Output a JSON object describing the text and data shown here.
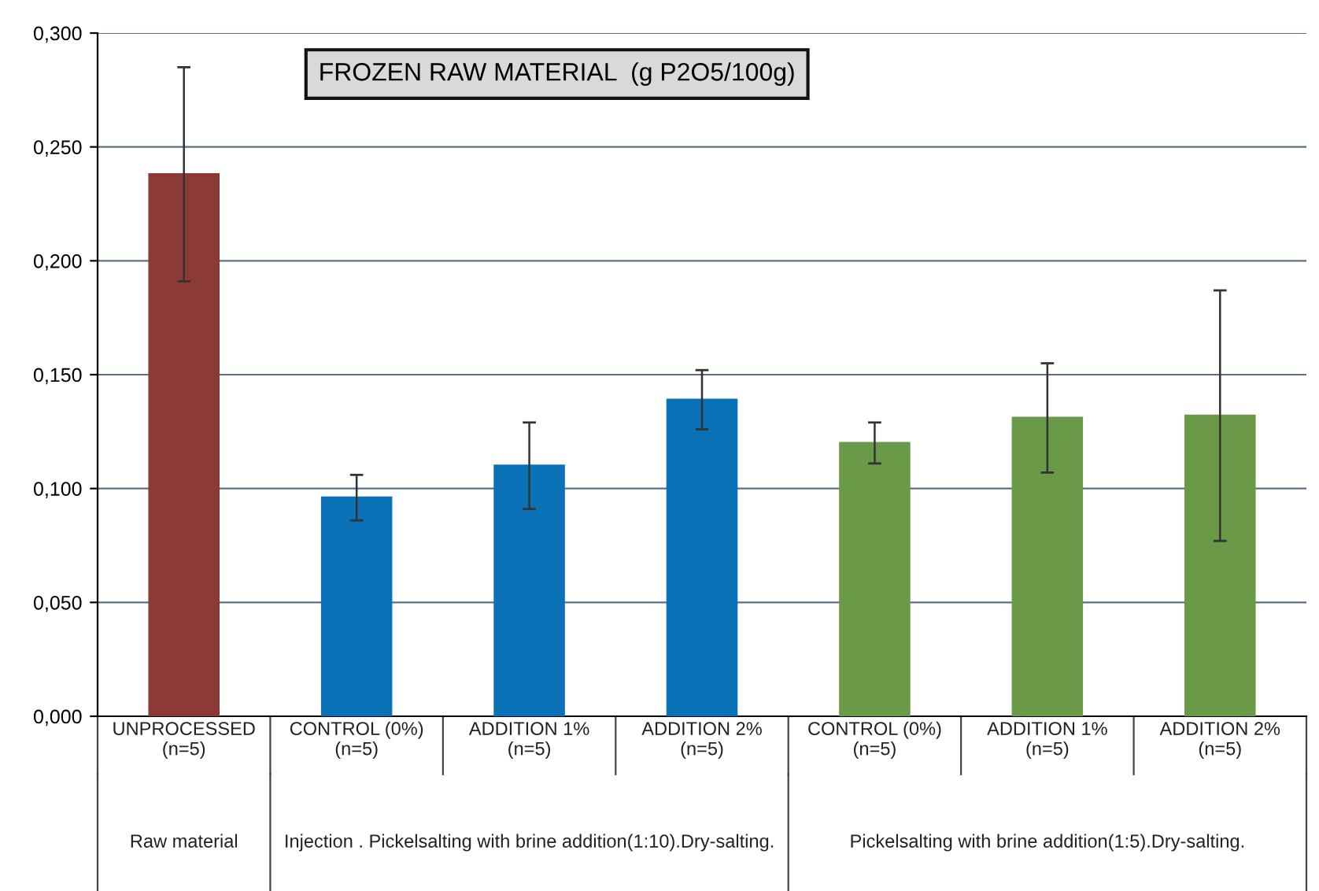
{
  "chart_data": {
    "type": "bar",
    "title": "FROZEN RAW MATERIAL  (g P2O5/100g)",
    "categories": [
      "UNPROCESSED\n(n=5)",
      "CONTROL (0%)\n(n=5)",
      "ADDITION 1%\n(n=5)",
      "ADDITION 2%\n(n=5)",
      "CONTROL (0%)\n(n=5)",
      "ADDITION 1%\n(n=5)",
      "ADDITION 2%\n(n=5)"
    ],
    "values": [
      0.238,
      0.096,
      0.11,
      0.139,
      0.12,
      0.131,
      0.132
    ],
    "errors": [
      0.047,
      0.01,
      0.019,
      0.013,
      0.009,
      0.024,
      0.055
    ],
    "colors": [
      "#8b3a36",
      "#0b72b8",
      "#0b72b8",
      "#0b72b8",
      "#6a9a48",
      "#6a9a48",
      "#6a9a48"
    ],
    "ylim": [
      0,
      0.3
    ],
    "yticks": [
      {
        "value": 0,
        "label": "0,000"
      },
      {
        "value": 0.05,
        "label": "0,050"
      },
      {
        "value": 0.1,
        "label": "0,100"
      },
      {
        "value": 0.15,
        "label": "0,150"
      },
      {
        "value": 0.2,
        "label": "0,200"
      },
      {
        "value": 0.25,
        "label": "0,250"
      },
      {
        "value": 0.3,
        "label": "0,300"
      }
    ],
    "grid": "y",
    "annotations": [
      "Raw material",
      "Injection . Pickelsalting with brine addition(1:10).Dry-salting.",
      "Pickelsalting with brine addition(1:5).Dry-salting."
    ]
  }
}
